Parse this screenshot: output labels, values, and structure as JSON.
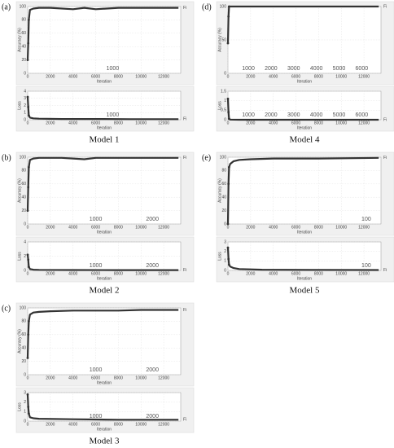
{
  "chart_data": [
    {
      "label": "(a)",
      "caption": "Model 1",
      "plots": [
        {
          "type": "line",
          "ylabel": "Accuracy (%)",
          "xlabel": "Iteration",
          "color": "#333333",
          "end_label": "Fi",
          "x": [
            0,
            50,
            100,
            200,
            500,
            1000,
            2000,
            4000,
            5000,
            6000,
            8000,
            10000,
            13300
          ],
          "y": [
            20,
            45,
            80,
            95,
            97,
            98,
            98,
            96,
            98,
            96,
            98,
            98,
            98
          ],
          "xlim": [
            0,
            13500
          ],
          "ylim": [
            0,
            100
          ],
          "xticks": [
            0,
            2000,
            4000,
            6000,
            8000,
            10000,
            12000
          ],
          "yticks": [
            0,
            20,
            40,
            60,
            80,
            100
          ],
          "annotations": [
            {
              "text": "1000",
              "x": 7500
            }
          ]
        },
        {
          "type": "line",
          "ylabel": "Loss",
          "xlabel": "Iteration",
          "color": "#333333",
          "end_label": "Fi",
          "x": [
            0,
            50,
            100,
            200,
            500,
            1000,
            3000,
            6000,
            9000,
            13300
          ],
          "y": [
            3.2,
            1.8,
            0.6,
            0.3,
            0.2,
            0.15,
            0.1,
            0.1,
            0.08,
            0.08
          ],
          "xlim": [
            0,
            13500
          ],
          "ylim": [
            0,
            4
          ],
          "xticks": [
            0,
            2000,
            4000,
            6000,
            8000,
            10000,
            12000
          ],
          "yticks": [
            0,
            1,
            2,
            3,
            4
          ],
          "annotations": [
            {
              "text": "1000",
              "x": 7500
            }
          ]
        }
      ]
    },
    {
      "label": "(b)",
      "caption": "Model 2",
      "plots": [
        {
          "type": "line",
          "ylabel": "Accuracy (%)",
          "xlabel": "Iteration",
          "color": "#333333",
          "end_label": "Fi",
          "x": [
            0,
            50,
            100,
            200,
            500,
            1000,
            3000,
            5000,
            6000,
            8000,
            13300
          ],
          "y": [
            20,
            55,
            85,
            96,
            98,
            99,
            99,
            97,
            99,
            99,
            99
          ],
          "xlim": [
            0,
            13500
          ],
          "ylim": [
            0,
            100
          ],
          "xticks": [
            0,
            2000,
            4000,
            6000,
            8000,
            10000,
            12000
          ],
          "yticks": [
            0,
            20,
            40,
            60,
            80,
            100
          ],
          "annotations": [
            {
              "text": "1000",
              "x": 6000
            },
            {
              "text": "2000",
              "x": 11000
            }
          ]
        },
        {
          "type": "line",
          "ylabel": "Loss",
          "xlabel": "Iteration",
          "color": "#333333",
          "end_label": "Fi",
          "x": [
            0,
            50,
            100,
            200,
            500,
            1000,
            4000,
            8000,
            13300
          ],
          "y": [
            2.2,
            1.5,
            0.5,
            0.2,
            0.1,
            0.08,
            0.06,
            0.05,
            0.05
          ],
          "xlim": [
            0,
            13500
          ],
          "ylim": [
            0,
            4
          ],
          "xticks": [
            0,
            2000,
            4000,
            6000,
            8000,
            10000,
            12000
          ],
          "yticks": [
            0,
            2,
            4
          ],
          "annotations": [
            {
              "text": "1000",
              "x": 6000
            },
            {
              "text": "2000",
              "x": 11000
            }
          ]
        }
      ]
    },
    {
      "label": "(c)",
      "caption": "Model 3",
      "plots": [
        {
          "type": "line",
          "ylabel": "Accuracy (%)",
          "xlabel": "Iteration",
          "color": "#333333",
          "end_label": "Fi",
          "x": [
            0,
            50,
            100,
            200,
            500,
            1000,
            2000,
            4000,
            6000,
            8000,
            10000,
            13300
          ],
          "y": [
            25,
            60,
            80,
            90,
            93,
            94,
            95,
            96,
            96,
            96,
            97,
            97
          ],
          "xlim": [
            0,
            13500
          ],
          "ylim": [
            0,
            100
          ],
          "xticks": [
            0,
            2000,
            4000,
            6000,
            8000,
            10000,
            12000
          ],
          "yticks": [
            0,
            20,
            40,
            60,
            80,
            100
          ],
          "annotations": [
            {
              "text": "1000",
              "x": 6000
            },
            {
              "text": "2000",
              "x": 11000
            }
          ]
        },
        {
          "type": "line",
          "ylabel": "Loss",
          "xlabel": "Iteration",
          "color": "#333333",
          "end_label": "Fi",
          "x": [
            0,
            50,
            100,
            200,
            500,
            1000,
            4000,
            8000,
            13300
          ],
          "y": [
            2.8,
            1.5,
            0.8,
            0.4,
            0.3,
            0.25,
            0.2,
            0.15,
            0.15
          ],
          "xlim": [
            0,
            13500
          ],
          "ylim": [
            0,
            3
          ],
          "xticks": [
            0,
            2000,
            4000,
            6000,
            8000,
            10000,
            12000
          ],
          "yticks": [
            0,
            1,
            2,
            3
          ],
          "annotations": [
            {
              "text": "1000",
              "x": 6000
            },
            {
              "text": "2000",
              "x": 11000
            }
          ]
        }
      ]
    },
    {
      "label": "(d)",
      "caption": "Model 4",
      "plots": [
        {
          "type": "line",
          "ylabel": "Accuracy (%)",
          "xlabel": "Iteration",
          "color": "#333333",
          "end_label": "Fi",
          "x": [
            0,
            50,
            100,
            200,
            1000,
            6000,
            13300
          ],
          "y": [
            45,
            85,
            100,
            100,
            100,
            100,
            100
          ],
          "xlim": [
            0,
            13500
          ],
          "ylim": [
            0,
            100
          ],
          "xticks": [
            0,
            2000,
            4000,
            6000,
            8000,
            10000,
            12000
          ],
          "yticks": [
            0,
            50,
            100
          ],
          "annotations": [
            {
              "text": "1000",
              "x": 1800
            },
            {
              "text": "2000",
              "x": 3800
            },
            {
              "text": "3000",
              "x": 5800
            },
            {
              "text": "4000",
              "x": 7800
            },
            {
              "text": "5000",
              "x": 9800
            },
            {
              "text": "6000",
              "x": 11800
            }
          ]
        },
        {
          "type": "line",
          "ylabel": "Loss",
          "xlabel": "Iteration",
          "color": "#333333",
          "end_label": "Fi",
          "x": [
            0,
            50,
            100,
            200,
            1000,
            6000,
            13300
          ],
          "y": [
            1.1,
            0.4,
            0.05,
            0.01,
            0,
            0,
            0
          ],
          "xlim": [
            0,
            13500
          ],
          "ylim": [
            0,
            1.5
          ],
          "xticks": [
            0,
            2000,
            4000,
            6000,
            8000,
            10000,
            12000
          ],
          "yticks": [
            0,
            0.5,
            1,
            1.5
          ],
          "annotations": [
            {
              "text": "1000",
              "x": 1800
            },
            {
              "text": "2000",
              "x": 3800
            },
            {
              "text": "3000",
              "x": 5800
            },
            {
              "text": "4000",
              "x": 7800
            },
            {
              "text": "5000",
              "x": 9800
            },
            {
              "text": "6000",
              "x": 11800
            }
          ]
        }
      ]
    },
    {
      "label": "(e)",
      "caption": "Model 5",
      "plots": [
        {
          "type": "line",
          "ylabel": "Accuracy (%)",
          "xlabel": "Iteration",
          "color": "#333333",
          "end_label": "Fi",
          "x": [
            0,
            50,
            100,
            200,
            500,
            1000,
            2000,
            4000,
            8000,
            13300
          ],
          "y": [
            0,
            60,
            85,
            90,
            94,
            96,
            97,
            98,
            98,
            99
          ],
          "xlim": [
            0,
            13500
          ],
          "ylim": [
            0,
            100
          ],
          "xticks": [
            0,
            2000,
            4000,
            6000,
            8000,
            10000,
            12000
          ],
          "yticks": [
            0,
            20,
            40,
            60,
            80,
            100
          ],
          "annotations": [
            {
              "text": "100",
              "x": 12200
            }
          ]
        },
        {
          "type": "line",
          "ylabel": "Loss",
          "xlabel": "Iteration",
          "color": "#333333",
          "end_label": "Fi",
          "x": [
            0,
            50,
            100,
            200,
            500,
            1000,
            3000,
            8000,
            13300
          ],
          "y": [
            2.4,
            1.2,
            0.6,
            0.4,
            0.25,
            0.15,
            0.08,
            0.05,
            0.04
          ],
          "xlim": [
            0,
            13500
          ],
          "ylim": [
            0,
            3
          ],
          "xticks": [
            0,
            2000,
            4000,
            6000,
            8000,
            10000,
            12000
          ],
          "yticks": [
            0,
            1,
            2,
            3
          ],
          "annotations": [
            {
              "text": "100",
              "x": 12200
            }
          ]
        }
      ]
    }
  ]
}
